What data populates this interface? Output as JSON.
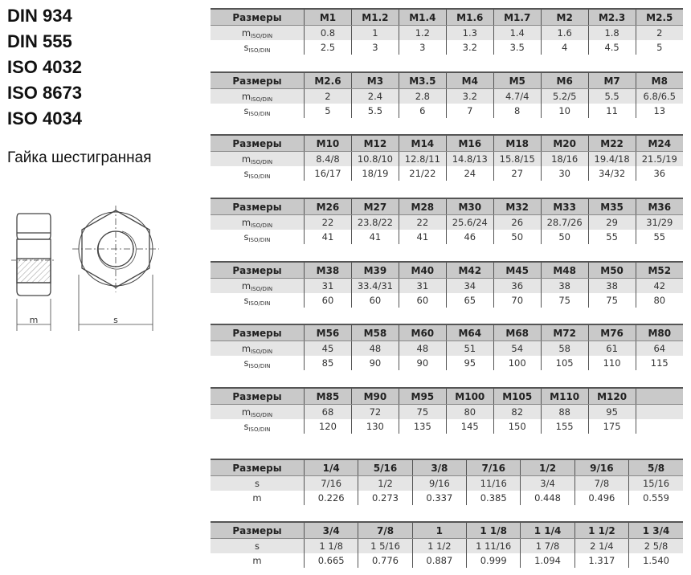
{
  "standards": [
    "DIN 934",
    "DIN 555",
    "ISO 4032",
    "ISO 8673",
    "ISO 4034"
  ],
  "subtitle": "Гайка шестигранная",
  "drawing": {
    "label_m": "m",
    "label_s": "s"
  },
  "header_label": "Размеры",
  "metric_row_labels": [
    {
      "main": "m",
      "sub": "ISO/DIN"
    },
    {
      "main": "s",
      "sub": "ISO/DIN"
    }
  ],
  "inch_row_labels": [
    {
      "main": "s",
      "sub": ""
    },
    {
      "main": "m",
      "sub": ""
    }
  ],
  "metric_tables": [
    {
      "sizes": [
        "M1",
        "M1.2",
        "M1.4",
        "M1.6",
        "M1.7",
        "M2",
        "M2.3",
        "M2.5"
      ],
      "m": [
        "0.8",
        "1",
        "1.2",
        "1.3",
        "1.4",
        "1.6",
        "1.8",
        "2"
      ],
      "s": [
        "2.5",
        "3",
        "3",
        "3.2",
        "3.5",
        "4",
        "4.5",
        "5"
      ]
    },
    {
      "sizes": [
        "M2.6",
        "M3",
        "M3.5",
        "M4",
        "M5",
        "M6",
        "M7",
        "M8"
      ],
      "m": [
        "2",
        "2.4",
        "2.8",
        "3.2",
        "4.7/4",
        "5.2/5",
        "5.5",
        "6.8/6.5"
      ],
      "s": [
        "5",
        "5.5",
        "6",
        "7",
        "8",
        "10",
        "11",
        "13"
      ]
    },
    {
      "sizes": [
        "M10",
        "M12",
        "M14",
        "M16",
        "M18",
        "M20",
        "M22",
        "M24"
      ],
      "m": [
        "8.4/8",
        "10.8/10",
        "12.8/11",
        "14.8/13",
        "15.8/15",
        "18/16",
        "19.4/18",
        "21.5/19"
      ],
      "s": [
        "16/17",
        "18/19",
        "21/22",
        "24",
        "27",
        "30",
        "34/32",
        "36"
      ]
    },
    {
      "sizes": [
        "M26",
        "M27",
        "M28",
        "M30",
        "M32",
        "M33",
        "M35",
        "M36"
      ],
      "m": [
        "22",
        "23.8/22",
        "22",
        "25.6/24",
        "26",
        "28.7/26",
        "29",
        "31/29"
      ],
      "s": [
        "41",
        "41",
        "41",
        "46",
        "50",
        "50",
        "55",
        "55"
      ]
    },
    {
      "sizes": [
        "M38",
        "M39",
        "M40",
        "M42",
        "M45",
        "M48",
        "M50",
        "M52"
      ],
      "m": [
        "31",
        "33.4/31",
        "31",
        "34",
        "36",
        "38",
        "38",
        "42"
      ],
      "s": [
        "60",
        "60",
        "60",
        "65",
        "70",
        "75",
        "75",
        "80"
      ]
    },
    {
      "sizes": [
        "M56",
        "M58",
        "M60",
        "M64",
        "M68",
        "M72",
        "M76",
        "M80"
      ],
      "m": [
        "45",
        "48",
        "48",
        "51",
        "54",
        "58",
        "61",
        "64"
      ],
      "s": [
        "85",
        "90",
        "90",
        "95",
        "100",
        "105",
        "110",
        "115"
      ]
    },
    {
      "sizes": [
        "M85",
        "M90",
        "M95",
        "M100",
        "M105",
        "M110",
        "M120",
        ""
      ],
      "m": [
        "68",
        "72",
        "75",
        "80",
        "82",
        "88",
        "95",
        ""
      ],
      "s": [
        "120",
        "130",
        "135",
        "145",
        "150",
        "155",
        "175",
        ""
      ]
    }
  ],
  "inch_tables": [
    {
      "sizes": [
        "1/4",
        "5/16",
        "3/8",
        "7/16",
        "1/2",
        "9/16",
        "5/8"
      ],
      "s": [
        "7/16",
        "1/2",
        "9/16",
        "11/16",
        "3/4",
        "7/8",
        "15/16"
      ],
      "m": [
        "0.226",
        "0.273",
        "0.337",
        "0.385",
        "0.448",
        "0.496",
        "0.559"
      ]
    },
    {
      "sizes": [
        "3/4",
        "7/8",
        "1",
        "1 1/8",
        "1 1/4",
        "1 1/2",
        "1 3/4"
      ],
      "s": [
        "1 1/8",
        "1 5/16",
        "1 1/2",
        "1 11/16",
        "1 7/8",
        "2 1/4",
        "2 5/8"
      ],
      "m": [
        "0.665",
        "0.776",
        "0.887",
        "0.999",
        "1.094",
        "1.317",
        "1.540"
      ]
    }
  ]
}
